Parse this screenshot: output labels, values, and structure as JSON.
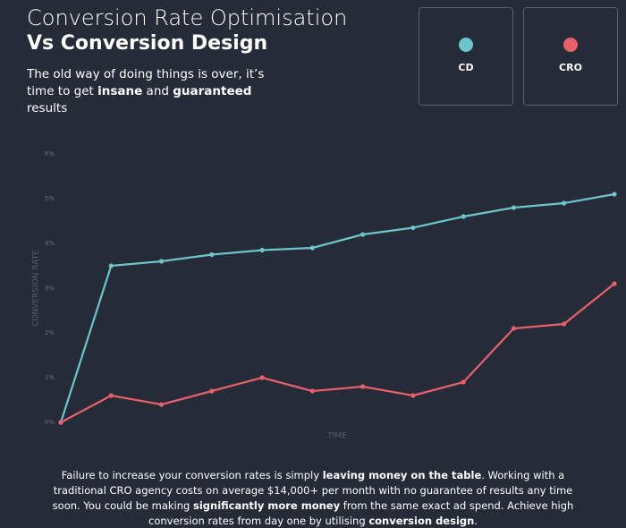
{
  "header": {
    "title_line1": "Conversion Rate Optimisation",
    "title_line2": "Vs Conversion Design",
    "subtitle": [
      "The old way of doing things is over, it’s time to get ",
      "insane",
      " and ",
      "guaranteed",
      " results"
    ]
  },
  "chart_data": {
    "type": "line",
    "ylabel": "CONVERSION RATE",
    "xlabel": "TIME",
    "grid": false,
    "categories": [
      null,
      null,
      null,
      null,
      null,
      null,
      null,
      null,
      null,
      null,
      null,
      null
    ],
    "ylim": [
      0,
      6
    ],
    "yticks": [
      {
        "value": 0,
        "label": "0%"
      },
      {
        "value": 1,
        "label": "1%"
      },
      {
        "value": 2,
        "label": "2%"
      },
      {
        "value": 3,
        "label": "3%"
      },
      {
        "value": 4,
        "label": "4%"
      },
      {
        "value": 5,
        "label": "5%"
      },
      {
        "value": 6,
        "label": "6%"
      }
    ],
    "series": [
      {
        "name": "CD",
        "color": "#6cc5c8",
        "values": [
          0,
          3.5,
          3.6,
          3.75,
          3.85,
          3.9,
          4.2,
          4.35,
          4.6,
          4.8,
          4.9,
          5.1
        ]
      },
      {
        "name": "CRO",
        "color": "#e8606b",
        "values": [
          0,
          0.6,
          0.4,
          0.7,
          1.0,
          0.7,
          0.8,
          0.6,
          0.9,
          2.1,
          2.2,
          3.1
        ]
      }
    ]
  },
  "footer": {
    "paragraph": [
      "Failure to increase your conversion rates is simply ",
      "leaving money on the table",
      ". Working with a traditional CRO agency costs on average $14,000+ per month with no guarantee of results any time soon. You could be making ",
      "significantly more money",
      " from the same exact ad spend. Achieve high conversion rates from day one by utilising ",
      "conversion design",
      "."
    ]
  }
}
